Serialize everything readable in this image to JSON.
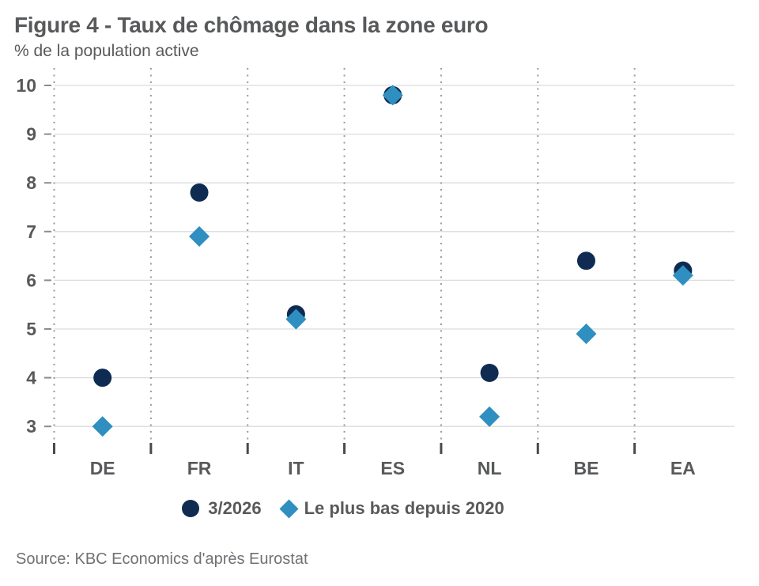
{
  "header": {
    "title": "Figure 4 - Taux de chômage dans la zone euro",
    "subtitle": "% de la population active"
  },
  "chart_data": {
    "type": "scatter",
    "title": "Figure 4 - Taux de chômage dans la zone euro",
    "subtitle_ylabel": "% de la population active",
    "categories": [
      "DE",
      "FR",
      "IT",
      "ES",
      "NL",
      "BE",
      "EA"
    ],
    "series": [
      {
        "name": "3/2026",
        "marker": "circle",
        "color": "#0f2b52",
        "values": [
          4.0,
          7.8,
          5.3,
          9.8,
          4.1,
          6.4,
          6.2
        ]
      },
      {
        "name": "Le plus bas depuis 2020",
        "marker": "diamond",
        "color": "#2e8fc0",
        "values": [
          3.0,
          6.9,
          5.2,
          9.8,
          3.2,
          4.9,
          6.1
        ]
      }
    ],
    "ylim": [
      3,
      10
    ],
    "yticks": [
      3,
      4,
      5,
      6,
      7,
      8,
      9,
      10
    ],
    "grid": "horizontal solid lines at each integer; vertical dotted separators between categories",
    "legend_position": "bottom"
  },
  "source": {
    "text": "Source: KBC Economics d'après Eurostat"
  },
  "colors": {
    "series_1": "#0f2b52",
    "series_2": "#2e8fc0",
    "gridline": "#dcdcdc",
    "dotted_separator": "#9a9a9a",
    "axis_tick": "#4a4a4a",
    "y_tick": "#8c8c8c",
    "text": "#58595b",
    "source_text": "#707175"
  }
}
